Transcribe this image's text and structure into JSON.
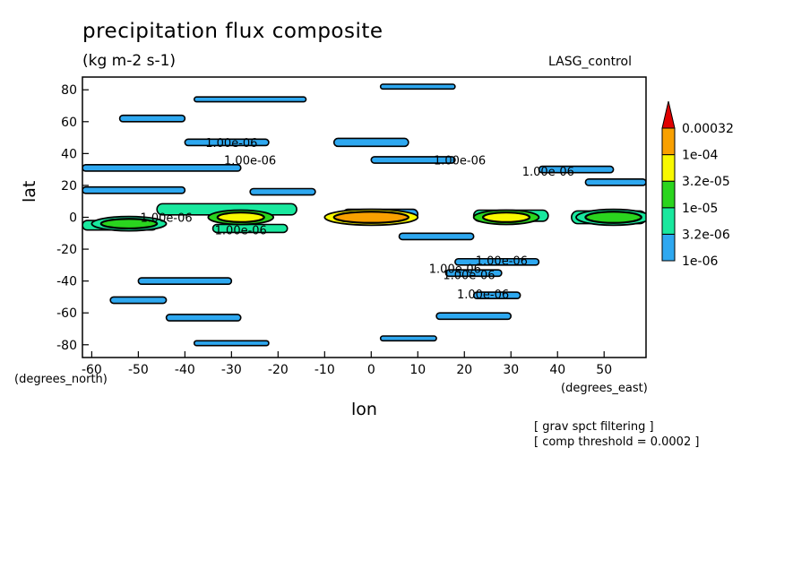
{
  "chart_data": {
    "type": "heatmap",
    "title": "precipitation flux composite",
    "units": "(kg m-2 s-1)",
    "model_label": "LASG_control",
    "xlabel": "lon",
    "ylabel": "lat",
    "x_unit_label": "(degrees_east)",
    "y_unit_label": "(degrees_north)",
    "xlim": [
      -62,
      59
    ],
    "ylim": [
      -88,
      88
    ],
    "x_ticks": [
      -60,
      -50,
      -40,
      -30,
      -20,
      -10,
      0,
      10,
      20,
      30,
      40,
      50
    ],
    "y_ticks": [
      80,
      60,
      40,
      20,
      0,
      -20,
      -40,
      -60,
      -80
    ],
    "levels": [
      "1e-06",
      "3.2e-06",
      "1e-05",
      "3.2e-05",
      "1e-04",
      "0.00032"
    ],
    "colorbar_colors": [
      "#2ea8f0",
      "#19e89e",
      "#2ad51e",
      "#f8f800",
      "#f8a000",
      "#e00000"
    ],
    "contour_labels": [
      {
        "text": "1.00e-06",
        "lon": -30,
        "lat": 47
      },
      {
        "text": "1.00e-06",
        "lon": -26,
        "lat": 36
      },
      {
        "text": "1.00e-06",
        "lon": 19,
        "lat": 36
      },
      {
        "text": "1.00e-06",
        "lon": 38,
        "lat": 29
      },
      {
        "text": "1.00e-06",
        "lon": -44,
        "lat": 0
      },
      {
        "text": "1.00e-06",
        "lon": -28,
        "lat": -8
      },
      {
        "text": "1.00e-06",
        "lon": 28,
        "lat": -27
      },
      {
        "text": "1.00e-06",
        "lon": 18,
        "lat": -32
      },
      {
        "text": "1.00e-06",
        "lon": 21,
        "lat": -36
      },
      {
        "text": "1.00e-06",
        "lon": 24,
        "lat": -48
      }
    ],
    "features": [
      {
        "type": "band",
        "lon0": -62,
        "lon1": -28,
        "lat": 31,
        "width": 4,
        "level": 0
      },
      {
        "type": "band",
        "lon0": -40,
        "lon1": -22,
        "lat": 47,
        "width": 4,
        "level": 0
      },
      {
        "type": "band",
        "lon0": -54,
        "lon1": -40,
        "lat": 62,
        "width": 4,
        "level": 0
      },
      {
        "type": "band",
        "lon0": -38,
        "lon1": -14,
        "lat": 74,
        "width": 3,
        "level": 0
      },
      {
        "type": "band",
        "lon0": 2,
        "lon1": 18,
        "lat": 82,
        "width": 3,
        "level": 0
      },
      {
        "type": "band",
        "lon0": -8,
        "lon1": 8,
        "lat": 47,
        "width": 5,
        "level": 0
      },
      {
        "type": "band",
        "lon0": 0,
        "lon1": 18,
        "lat": 36,
        "width": 4,
        "level": 0
      },
      {
        "type": "band",
        "lon0": 36,
        "lon1": 52,
        "lat": 30,
        "width": 4,
        "level": 0
      },
      {
        "type": "band",
        "lon0": 46,
        "lon1": 59,
        "lat": 22,
        "width": 4,
        "level": 0
      },
      {
        "type": "band",
        "lon0": -62,
        "lon1": -40,
        "lat": 17,
        "width": 4,
        "level": 0
      },
      {
        "type": "band",
        "lon0": -26,
        "lon1": -12,
        "lat": 16,
        "width": 4,
        "level": 0
      },
      {
        "type": "band",
        "lon0": -62,
        "lon1": -46,
        "lat": -5,
        "width": 6,
        "level": 1
      },
      {
        "type": "band",
        "lon0": -46,
        "lon1": -16,
        "lat": 5,
        "width": 7,
        "level": 1
      },
      {
        "type": "band",
        "lon0": -34,
        "lon1": -18,
        "lat": -7,
        "width": 5,
        "level": 1
      },
      {
        "type": "band",
        "lon0": -6,
        "lon1": 10,
        "lat": 2,
        "width": 6,
        "level": 0
      },
      {
        "type": "band",
        "lon0": 6,
        "lon1": 22,
        "lat": -12,
        "width": 4,
        "level": 0
      },
      {
        "type": "band",
        "lon0": 22,
        "lon1": 38,
        "lat": 1,
        "width": 7,
        "level": 1
      },
      {
        "type": "band",
        "lon0": 43,
        "lon1": 59,
        "lat": 0,
        "width": 8,
        "level": 1
      },
      {
        "type": "band",
        "lon0": 18,
        "lon1": 36,
        "lat": -28,
        "width": 4,
        "level": 0
      },
      {
        "type": "band",
        "lon0": 16,
        "lon1": 28,
        "lat": -35,
        "width": 4,
        "level": 0
      },
      {
        "type": "band",
        "lon0": 22,
        "lon1": 32,
        "lat": -49,
        "width": 4,
        "level": 0
      },
      {
        "type": "band",
        "lon0": -50,
        "lon1": -30,
        "lat": -40,
        "width": 4,
        "level": 0
      },
      {
        "type": "band",
        "lon0": -56,
        "lon1": -44,
        "lat": -52,
        "width": 4,
        "level": 0
      },
      {
        "type": "band",
        "lon0": -44,
        "lon1": -28,
        "lat": -63,
        "width": 4,
        "level": 0
      },
      {
        "type": "band",
        "lon0": 14,
        "lon1": 30,
        "lat": -62,
        "width": 4,
        "level": 0
      },
      {
        "type": "band",
        "lon0": -38,
        "lon1": -22,
        "lat": -79,
        "width": 3,
        "level": 0
      },
      {
        "type": "band",
        "lon0": 2,
        "lon1": 14,
        "lat": -76,
        "width": 3,
        "level": 0
      },
      {
        "type": "blob",
        "lon": -52,
        "lat": -4,
        "rx": 6,
        "ry": 3,
        "level": 2
      },
      {
        "type": "blob",
        "lon": -28,
        "lat": 0,
        "rx": 5,
        "ry": 3,
        "level": 3
      },
      {
        "type": "blob",
        "lon": 0,
        "lat": 0,
        "rx": 8,
        "ry": 3.5,
        "level": 4
      },
      {
        "type": "blob",
        "lon": 29,
        "lat": 0,
        "rx": 5,
        "ry": 3,
        "level": 3
      },
      {
        "type": "blob",
        "lon": 52,
        "lat": 0,
        "rx": 6,
        "ry": 3.5,
        "level": 2
      }
    ]
  },
  "footnotes": {
    "filter": "[ grav spct filtering ]",
    "threshold": "[ comp threshold = 0.0002 ]"
  }
}
